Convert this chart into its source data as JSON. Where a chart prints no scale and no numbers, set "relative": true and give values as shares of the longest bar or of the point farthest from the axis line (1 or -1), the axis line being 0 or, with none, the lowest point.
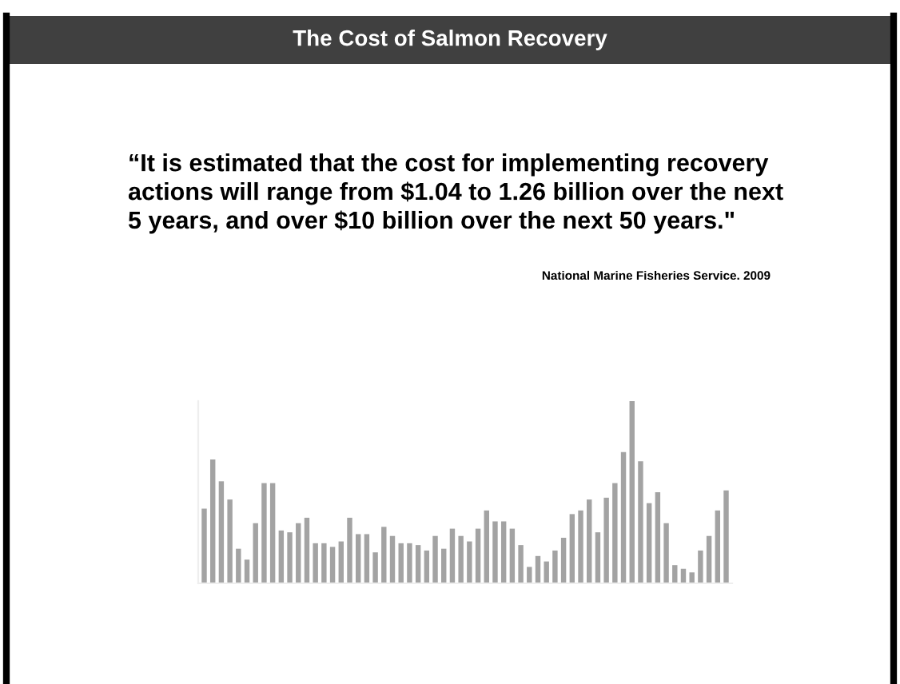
{
  "chart_data": {
    "type": "bar",
    "title": "The Cost of Salmon Recovery",
    "annotations": [
      "“It is estimated that the cost for implementing recovery\nactions will range from $1.04 to 1.26 billion over the next\n5 years, and over $10 billion over the next 50 years.\"",
      "National Marine Fisheries Service. 2009"
    ],
    "relative": true,
    "categories": [
      null,
      null,
      null,
      null,
      null,
      null,
      null,
      null,
      null,
      null,
      null,
      null,
      null,
      null,
      null,
      null,
      null,
      null,
      null,
      null,
      null,
      null,
      null,
      null,
      null,
      null,
      null,
      null,
      null,
      null,
      null,
      null,
      null,
      null,
      null,
      null,
      null,
      null,
      null,
      null,
      null,
      null,
      null,
      null,
      null,
      null,
      null,
      null,
      null,
      null,
      null,
      null,
      null,
      null,
      null,
      null,
      null,
      null,
      null,
      null,
      null,
      null
    ],
    "values": [
      0.41,
      0.68,
      0.56,
      0.46,
      0.19,
      0.13,
      0.33,
      0.55,
      0.55,
      0.29,
      0.28,
      0.33,
      0.36,
      0.22,
      0.22,
      0.2,
      0.23,
      0.36,
      0.27,
      0.27,
      0.17,
      0.31,
      0.26,
      0.22,
      0.22,
      0.21,
      0.18,
      0.26,
      0.19,
      0.3,
      0.26,
      0.23,
      0.3,
      0.4,
      0.34,
      0.34,
      0.3,
      0.21,
      0.09,
      0.15,
      0.12,
      0.18,
      0.25,
      0.38,
      0.4,
      0.46,
      0.28,
      0.47,
      0.55,
      0.72,
      1,
      0.67,
      0.44,
      0.5,
      0.33,
      0.1,
      0.08,
      0.06,
      0.18,
      0.26,
      0.4,
      0.51
    ],
    "color": "#a3a3a3",
    "grid": false,
    "legend": false
  }
}
